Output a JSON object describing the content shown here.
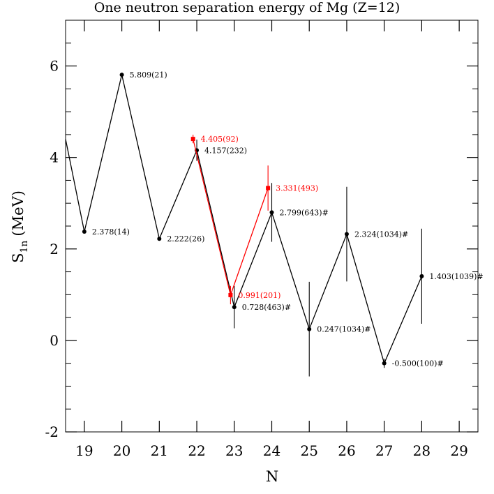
{
  "chart_data": {
    "type": "scatter",
    "title": "One neutron separation energy of Mg (Z=12)",
    "xlabel": "N",
    "ylabel_main": "S",
    "ylabel_sub": "1n",
    "ylabel_unit": "(MeV)",
    "xlim": [
      18.5,
      29.5
    ],
    "ylim": [
      -2,
      7
    ],
    "xticks": [
      19,
      20,
      21,
      22,
      23,
      24,
      25,
      26,
      27,
      28,
      29
    ],
    "xtick_labels": [
      "19",
      "20",
      "21",
      "22",
      "23",
      "24",
      "25",
      "26",
      "27",
      "28",
      "29"
    ],
    "yticks": [
      -2,
      0,
      2,
      4,
      6
    ],
    "ytick_labels": [
      "-2",
      "0",
      "2",
      "4",
      "6"
    ],
    "grid": false,
    "series": [
      {
        "color": "#000000",
        "line_start": {
          "x": 18.5,
          "y": 4.4
        },
        "points": [
          {
            "x": 19,
            "y": 2.378,
            "err": 0.014,
            "label": "2.378(14)"
          },
          {
            "x": 20,
            "y": 5.809,
            "err": 0.021,
            "label": "5.809(21)"
          },
          {
            "x": 21,
            "y": 2.222,
            "err": 0.026,
            "label": "2.222(26)"
          },
          {
            "x": 22,
            "y": 4.157,
            "err": 0.232,
            "label": "4.157(232)"
          },
          {
            "x": 23,
            "y": 0.728,
            "err": 0.463,
            "label": "0.728(463)#"
          },
          {
            "x": 24,
            "y": 2.799,
            "err": 0.643,
            "label": "2.799(643)#"
          },
          {
            "x": 25,
            "y": 0.247,
            "err": 1.034,
            "label": "0.247(1034)#"
          },
          {
            "x": 26,
            "y": 2.324,
            "err": 1.034,
            "label": "2.324(1034)#"
          },
          {
            "x": 27,
            "y": -0.5,
            "err": 0.1,
            "label": "-0.500(100)#"
          },
          {
            "x": 28,
            "y": 1.403,
            "err": 1.039,
            "label": "1.403(1039)#"
          }
        ]
      },
      {
        "color": "#ff0000",
        "points": [
          {
            "x": 21.9,
            "y": 4.405,
            "err": 0.092,
            "label": "4.405(92)"
          },
          {
            "x": 22.9,
            "y": 0.991,
            "err": 0.201,
            "label": "0.991(201)"
          },
          {
            "x": 23.9,
            "y": 3.331,
            "err": 0.493,
            "label": "3.331(493)"
          }
        ]
      }
    ]
  }
}
